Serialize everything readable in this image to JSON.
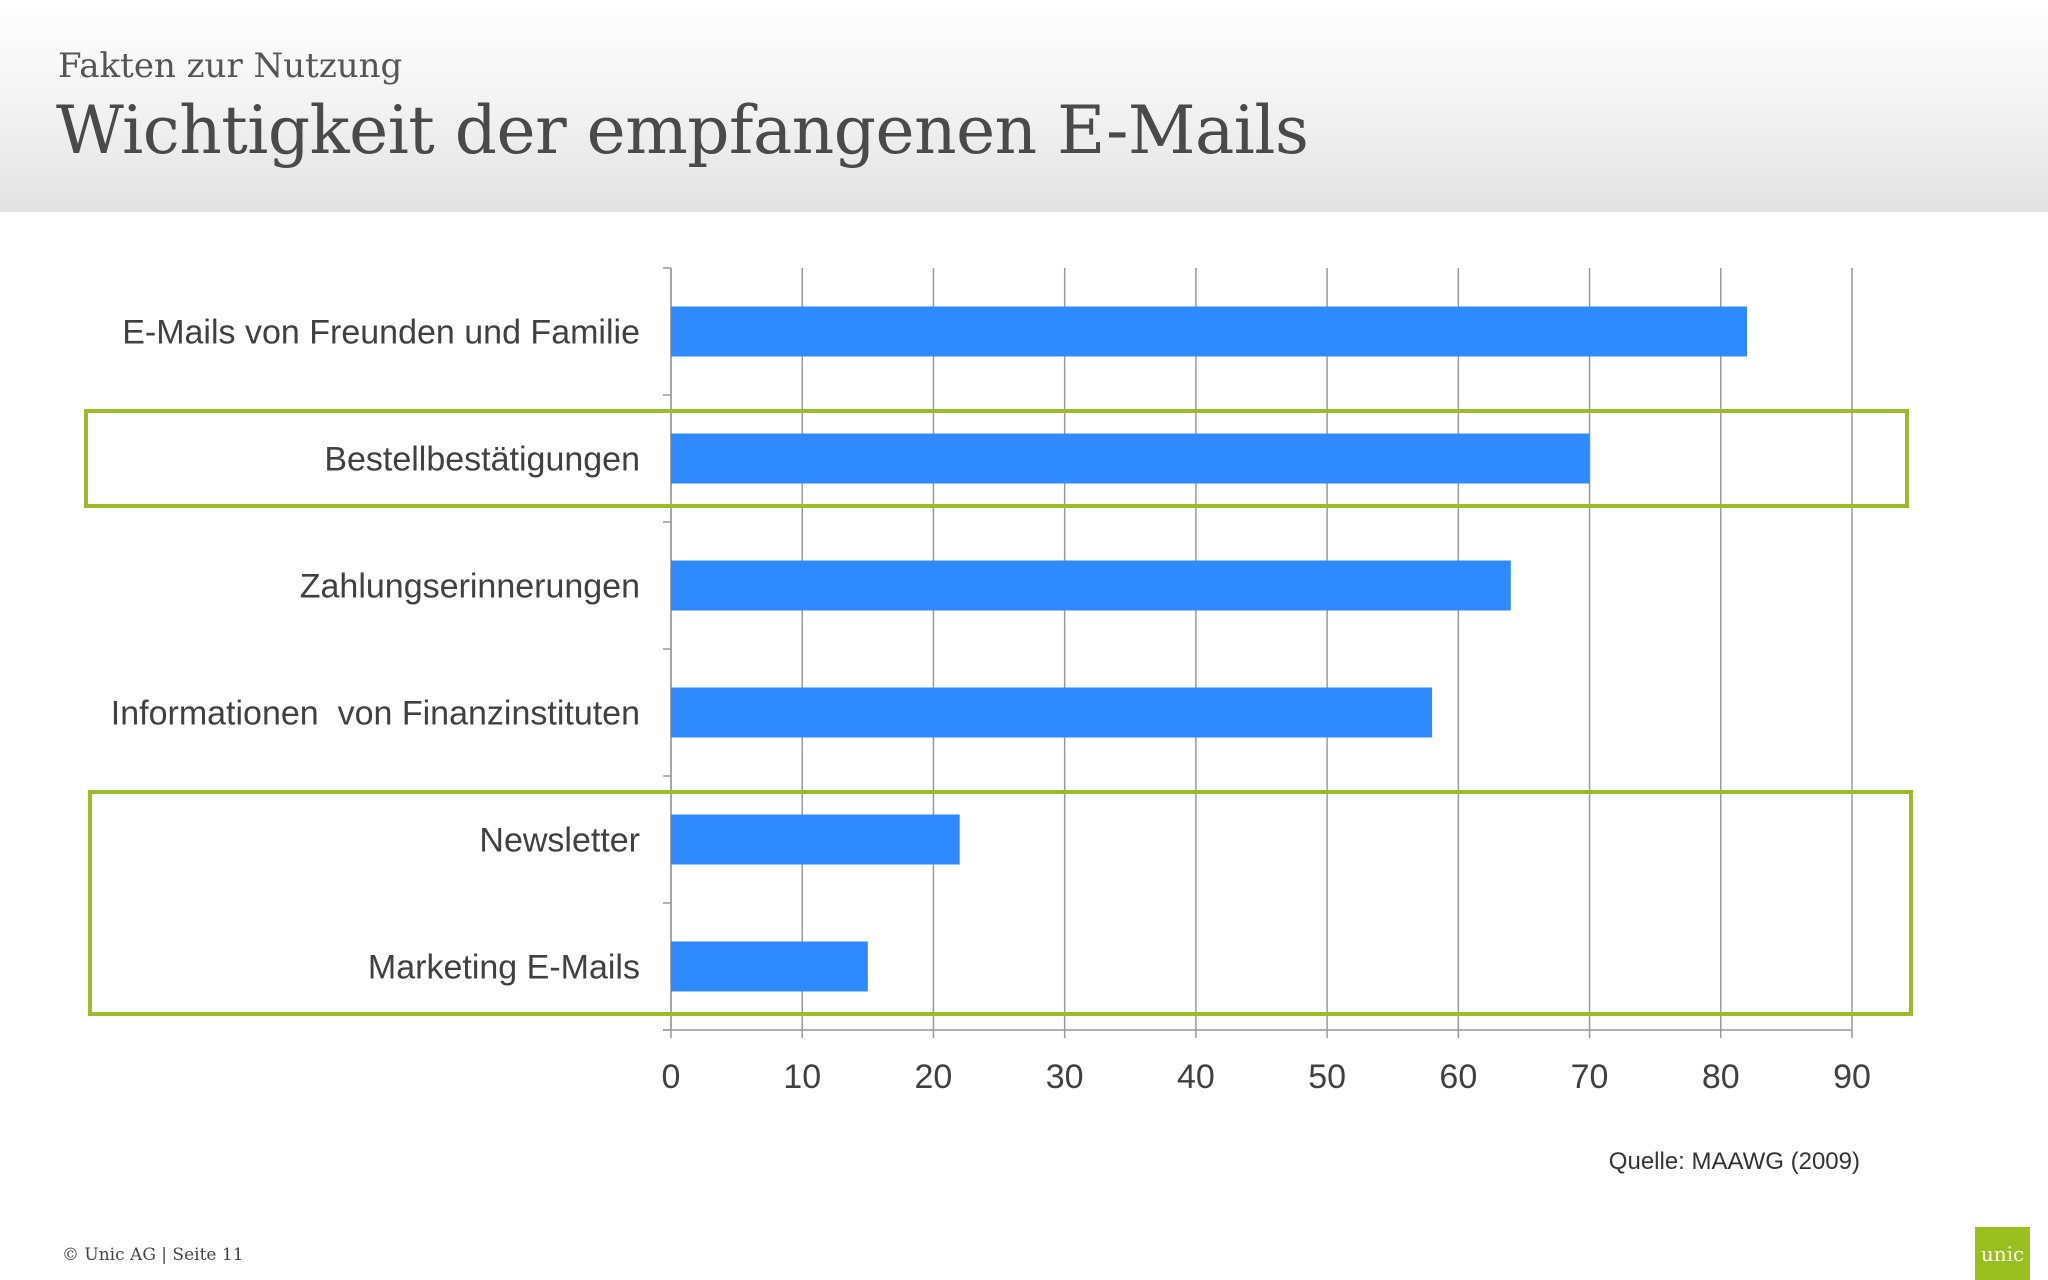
{
  "header": {
    "subtitle": "Fakten zur Nutzung",
    "title": "Wichtigkeit der empfangenen E-Mails"
  },
  "chart_data": {
    "type": "bar",
    "orientation": "horizontal",
    "categories": [
      "E-Mails von Freunden und Familie",
      "Bestellbestätigungen",
      "Zahlungserinnerungen",
      "Informationen  von Finanzinstituten",
      "Newsletter",
      "Marketing E-Mails"
    ],
    "values": [
      82,
      70,
      64,
      58,
      22,
      15
    ],
    "xlim": [
      0,
      90
    ],
    "xticks": [
      "0",
      "10",
      "20",
      "30",
      "40",
      "50",
      "60",
      "70",
      "80",
      "90"
    ],
    "grid": true,
    "bar_color": "#308aff",
    "highlight_color": "#9bbb2a",
    "highlight_groups": [
      [
        1
      ],
      [
        4,
        5
      ]
    ]
  },
  "source": "Quelle: MAAWG (2009)",
  "footer": {
    "text": "© Unic AG  |  Seite 11"
  },
  "logo": {
    "text": "unic",
    "color": "#98bf1d"
  }
}
